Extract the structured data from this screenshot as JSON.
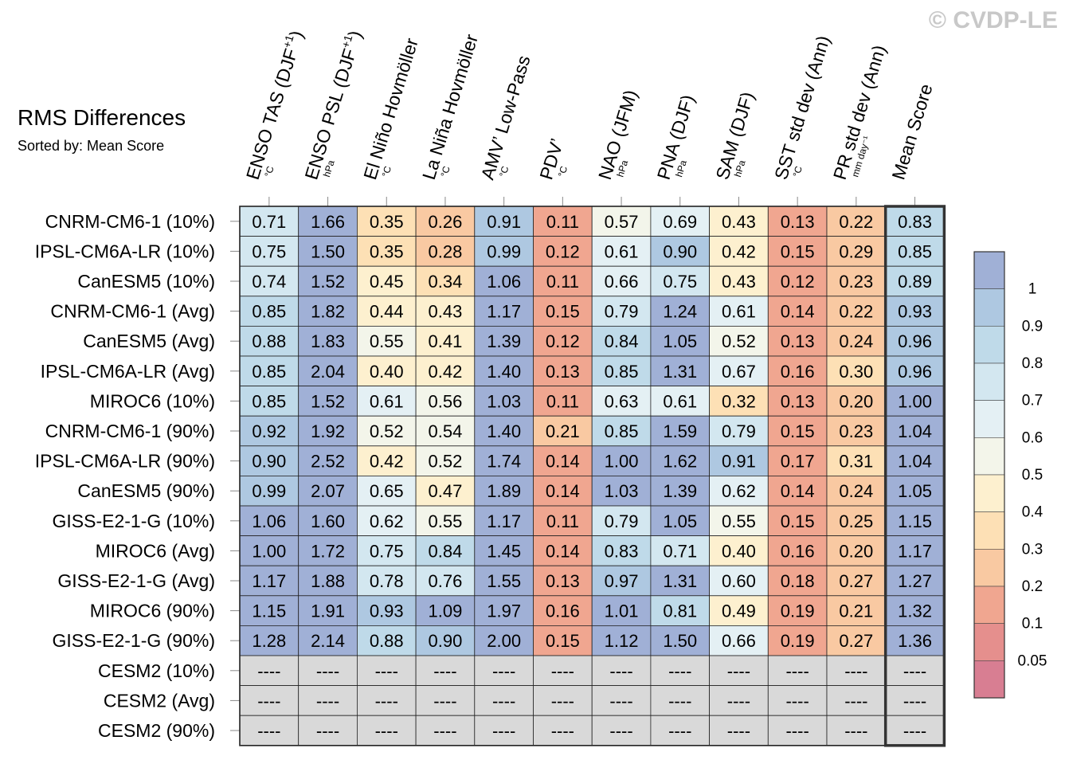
{
  "watermark": "© CVDP-LE",
  "chart_data": {
    "type": "heatmap",
    "title": "RMS Differences",
    "subtitle": "Sorted by: Mean Score",
    "columns": [
      {
        "label": "ENSO TAS (DJF",
        "sup": "+1",
        "close": ")",
        "unit": "°C"
      },
      {
        "label": "ENSO PSL (DJF",
        "sup": "+1",
        "close": ")",
        "unit": "hPa"
      },
      {
        "label": "El Niño Hovmöller",
        "sup": "",
        "close": "",
        "unit": "°C"
      },
      {
        "label": "La Niña Hovmöller",
        "sup": "",
        "close": "",
        "unit": "°C"
      },
      {
        "label": "AMV’ Low-Pass",
        "sup": "",
        "close": "",
        "unit": "°C"
      },
      {
        "label": "PDV’",
        "sup": "",
        "close": "",
        "unit": "°C"
      },
      {
        "label": "NAO (JFM)",
        "sup": "",
        "close": "",
        "unit": "hPa"
      },
      {
        "label": "PNA (DJF)",
        "sup": "",
        "close": "",
        "unit": "hPa"
      },
      {
        "label": "SAM (DJF)",
        "sup": "",
        "close": "",
        "unit": "hPa"
      },
      {
        "label": "SST std dev (Ann)",
        "sup": "",
        "close": "",
        "unit": "°C"
      },
      {
        "label": "PR std dev (Ann)",
        "sup": "",
        "close": "",
        "unit": "mm day⁻¹"
      },
      {
        "label": "Mean Score",
        "sup": "",
        "close": "",
        "unit": ""
      }
    ],
    "rows": [
      "CNRM-CM6-1 (10%)",
      "IPSL-CM6A-LR (10%)",
      "CanESM5 (10%)",
      "CNRM-CM6-1 (Avg)",
      "CanESM5 (Avg)",
      "IPSL-CM6A-LR (Avg)",
      "MIROC6 (10%)",
      "CNRM-CM6-1 (90%)",
      "IPSL-CM6A-LR (90%)",
      "CanESM5 (90%)",
      "GISS-E2-1-G (10%)",
      "MIROC6 (Avg)",
      "GISS-E2-1-G (Avg)",
      "MIROC6 (90%)",
      "GISS-E2-1-G (90%)",
      "CESM2 (10%)",
      "CESM2 (Avg)",
      "CESM2 (90%)"
    ],
    "values": [
      [
        0.71,
        1.66,
        0.35,
        0.26,
        0.91,
        0.11,
        0.57,
        0.69,
        0.43,
        0.13,
        0.22,
        0.83
      ],
      [
        0.75,
        1.5,
        0.35,
        0.28,
        0.99,
        0.12,
        0.61,
        0.9,
        0.42,
        0.15,
        0.29,
        0.85
      ],
      [
        0.74,
        1.52,
        0.45,
        0.34,
        1.06,
        0.11,
        0.66,
        0.75,
        0.43,
        0.12,
        0.23,
        0.89
      ],
      [
        0.85,
        1.82,
        0.44,
        0.43,
        1.17,
        0.15,
        0.79,
        1.24,
        0.61,
        0.14,
        0.22,
        0.93
      ],
      [
        0.88,
        1.83,
        0.55,
        0.41,
        1.39,
        0.12,
        0.84,
        1.05,
        0.52,
        0.13,
        0.24,
        0.96
      ],
      [
        0.85,
        2.04,
        0.4,
        0.42,
        1.4,
        0.13,
        0.85,
        1.31,
        0.67,
        0.16,
        0.3,
        0.96
      ],
      [
        0.85,
        1.52,
        0.61,
        0.56,
        1.03,
        0.11,
        0.63,
        0.61,
        0.32,
        0.13,
        0.2,
        1.0
      ],
      [
        0.92,
        1.92,
        0.52,
        0.54,
        1.4,
        0.21,
        0.85,
        1.59,
        0.79,
        0.15,
        0.23,
        1.04
      ],
      [
        0.9,
        2.52,
        0.42,
        0.52,
        1.74,
        0.14,
        1.0,
        1.62,
        0.91,
        0.17,
        0.31,
        1.04
      ],
      [
        0.99,
        2.07,
        0.65,
        0.47,
        1.89,
        0.14,
        1.03,
        1.39,
        0.62,
        0.14,
        0.24,
        1.05
      ],
      [
        1.06,
        1.6,
        0.62,
        0.55,
        1.17,
        0.11,
        0.79,
        1.05,
        0.55,
        0.15,
        0.25,
        1.15
      ],
      [
        1.0,
        1.72,
        0.75,
        0.84,
        1.45,
        0.14,
        0.83,
        0.71,
        0.4,
        0.16,
        0.2,
        1.17
      ],
      [
        1.17,
        1.88,
        0.78,
        0.76,
        1.55,
        0.13,
        0.97,
        1.31,
        0.6,
        0.18,
        0.27,
        1.27
      ],
      [
        1.15,
        1.91,
        0.93,
        1.09,
        1.97,
        0.16,
        1.01,
        0.81,
        0.49,
        0.19,
        0.21,
        1.32
      ],
      [
        1.28,
        2.14,
        0.88,
        0.9,
        2.0,
        0.15,
        1.12,
        1.5,
        0.66,
        0.19,
        0.27,
        1.36
      ],
      [
        null,
        null,
        null,
        null,
        null,
        null,
        null,
        null,
        null,
        null,
        null,
        null
      ],
      [
        null,
        null,
        null,
        null,
        null,
        null,
        null,
        null,
        null,
        null,
        null,
        null
      ],
      [
        null,
        null,
        null,
        null,
        null,
        null,
        null,
        null,
        null,
        null,
        null,
        null
      ]
    ],
    "missing_label": "----",
    "missing_color": "#d9d9d9",
    "highlight_column": "Mean Score",
    "colorbar": {
      "tick_labels": [
        "1",
        "0.9",
        "0.8",
        "0.7",
        "0.6",
        "0.5",
        "0.4",
        "0.3",
        "0.2",
        "0.1",
        "0.05"
      ],
      "thresholds": [
        1.0,
        0.9,
        0.8,
        0.7,
        0.6,
        0.5,
        0.4,
        0.3,
        0.2,
        0.1,
        0.05
      ],
      "colors": [
        "#a0b0d6",
        "#aec8e1",
        "#bfdae9",
        "#d3e7f0",
        "#e4f0f4",
        "#f3f5ea",
        "#fdf0cf",
        "#fde0b5",
        "#f9c9a2",
        "#f0a690",
        "#e58f8d",
        "#d87e92"
      ]
    }
  }
}
